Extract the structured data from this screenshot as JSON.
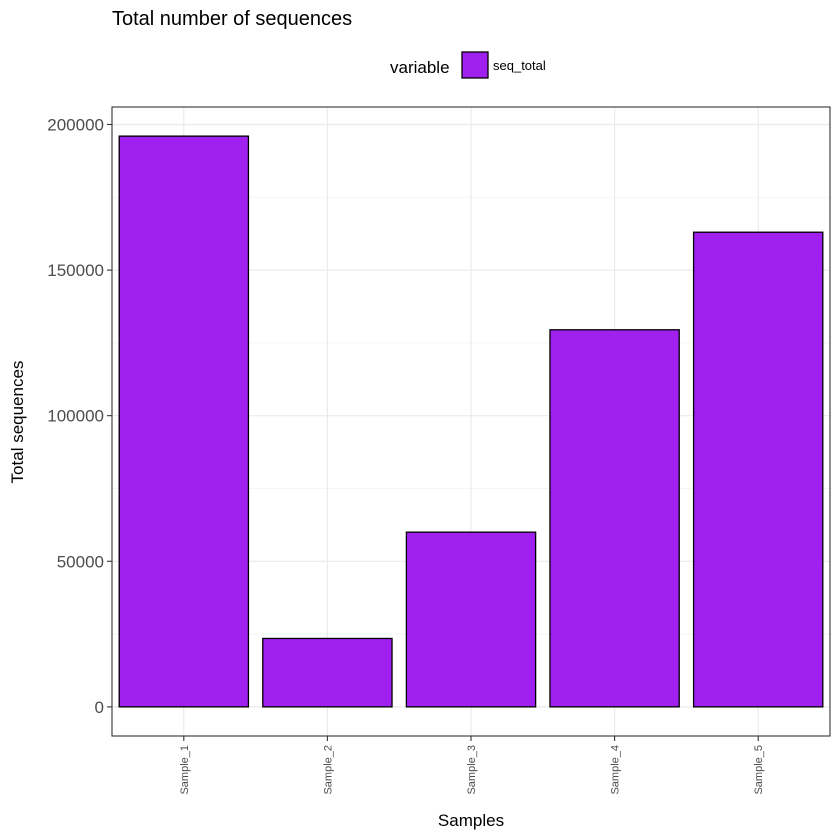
{
  "chart_data": {
    "type": "bar",
    "title": "Total number of sequences",
    "xlabel": "Samples",
    "ylabel": "Total sequences",
    "categories": [
      "Sample_1",
      "Sample_2",
      "Sample_3",
      "Sample_4",
      "Sample_5"
    ],
    "series": [
      {
        "name": "seq_total",
        "values": [
          196000,
          23500,
          60000,
          129500,
          163000
        ]
      }
    ],
    "ylim": [
      -10000,
      206000
    ],
    "yticks": [
      0,
      50000,
      100000,
      150000,
      200000
    ],
    "ytick_labels": [
      "0",
      "50000",
      "100000",
      "150000",
      "200000"
    ],
    "legend": {
      "title": "variable",
      "placement": "top"
    },
    "grid": true,
    "bar_color": "#a020f0",
    "bar_edge_color": "#000000"
  }
}
